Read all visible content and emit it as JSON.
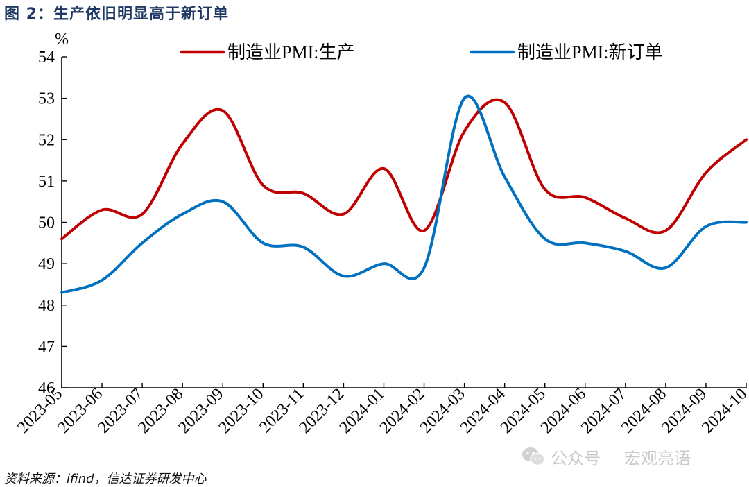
{
  "figure": {
    "title": "图 2：生产依旧明显高于新订单",
    "source": "资料来源：ifind，信达证券研发中心"
  },
  "watermark": {
    "channel_label": "公众号",
    "account_name": "宏观亮语"
  },
  "colors": {
    "production": "#C00000",
    "new_orders": "#0070C0",
    "title": "#1F3864"
  },
  "chart_data": {
    "type": "line",
    "title": "",
    "ylabel": "%",
    "xlabel": "",
    "ylim": [
      46,
      54
    ],
    "ytick_step": 1,
    "grid": false,
    "legend_position": "top",
    "categories": [
      "2023-05",
      "2023-06",
      "2023-07",
      "2023-08",
      "2023-09",
      "2023-10",
      "2023-11",
      "2023-12",
      "2024-01",
      "2024-02",
      "2024-03",
      "2024-04",
      "2024-05",
      "2024-06",
      "2024-07",
      "2024-08",
      "2024-09",
      "2024-10"
    ],
    "series": [
      {
        "name": "制造业PMI:生产",
        "color": "#C00000",
        "values": [
          49.6,
          50.3,
          50.2,
          51.9,
          52.7,
          50.9,
          50.7,
          50.2,
          51.3,
          49.8,
          52.2,
          52.9,
          50.8,
          50.6,
          50.1,
          49.8,
          51.2,
          52.0
        ]
      },
      {
        "name": "制造业PMI:新订单",
        "color": "#0070C0",
        "values": [
          48.3,
          48.6,
          49.5,
          50.2,
          50.5,
          49.5,
          49.4,
          48.7,
          49.0,
          48.9,
          53.0,
          51.1,
          49.6,
          49.5,
          49.3,
          48.9,
          49.9,
          50.0
        ]
      }
    ]
  }
}
